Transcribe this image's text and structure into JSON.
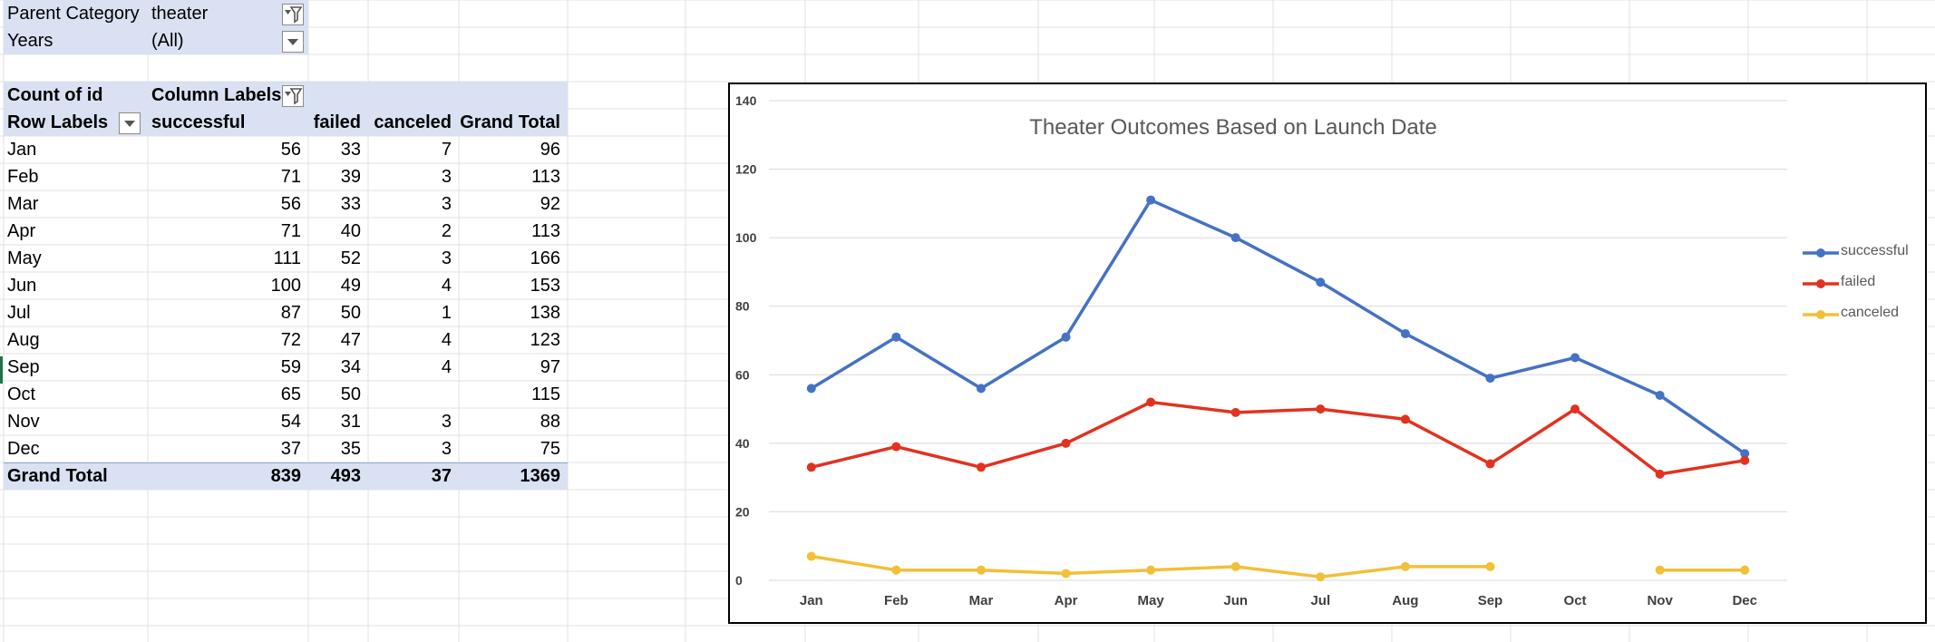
{
  "filters": [
    {
      "label": "Parent Category",
      "value": "theater",
      "filtered": true
    },
    {
      "label": "Years",
      "value": "(All)",
      "filtered": false
    }
  ],
  "pivot": {
    "header_top": {
      "count_label": "Count of id",
      "column_labels": "Column Labels"
    },
    "header": {
      "row_labels": "Row Labels",
      "successful": "successful",
      "failed": "failed",
      "canceled": "canceled",
      "grand_total": "Grand Total"
    },
    "rows": [
      {
        "label": "Jan",
        "successful": "56",
        "failed": "33",
        "canceled": "7",
        "total": "96"
      },
      {
        "label": "Feb",
        "successful": "71",
        "failed": "39",
        "canceled": "3",
        "total": "113"
      },
      {
        "label": "Mar",
        "successful": "56",
        "failed": "33",
        "canceled": "3",
        "total": "92"
      },
      {
        "label": "Apr",
        "successful": "71",
        "failed": "40",
        "canceled": "2",
        "total": "113"
      },
      {
        "label": "May",
        "successful": "111",
        "failed": "52",
        "canceled": "3",
        "total": "166"
      },
      {
        "label": "Jun",
        "successful": "100",
        "failed": "49",
        "canceled": "4",
        "total": "153"
      },
      {
        "label": "Jul",
        "successful": "87",
        "failed": "50",
        "canceled": "1",
        "total": "138"
      },
      {
        "label": "Aug",
        "successful": "72",
        "failed": "47",
        "canceled": "4",
        "total": "123"
      },
      {
        "label": "Sep",
        "successful": "59",
        "failed": "34",
        "canceled": "4",
        "total": "97"
      },
      {
        "label": "Oct",
        "successful": "65",
        "failed": "50",
        "canceled": "",
        "total": "115"
      },
      {
        "label": "Nov",
        "successful": "54",
        "failed": "31",
        "canceled": "3",
        "total": "88"
      },
      {
        "label": "Dec",
        "successful": "37",
        "failed": "35",
        "canceled": "3",
        "total": "75"
      }
    ],
    "grand_total": {
      "label": "Grand Total",
      "successful": "839",
      "failed": "493",
      "canceled": "37",
      "total": "1369"
    }
  },
  "icons": {
    "filter_active": "filter-dropdown-icon",
    "dropdown": "dropdown-arrow-icon"
  },
  "chart_data": {
    "type": "line",
    "title": "Theater Outcomes Based on Launch Date",
    "categories": [
      "Jan",
      "Feb",
      "Mar",
      "Apr",
      "May",
      "Jun",
      "Jul",
      "Aug",
      "Sep",
      "Oct",
      "Nov",
      "Dec"
    ],
    "series": [
      {
        "name": "successful",
        "color": "#4472c4",
        "values": [
          56,
          71,
          56,
          71,
          111,
          100,
          87,
          72,
          59,
          65,
          54,
          37
        ]
      },
      {
        "name": "failed",
        "color": "#e2321f",
        "values": [
          33,
          39,
          33,
          40,
          52,
          49,
          50,
          47,
          34,
          50,
          31,
          35
        ]
      },
      {
        "name": "canceled",
        "color": "#f2c037",
        "values": [
          7,
          3,
          3,
          2,
          3,
          4,
          1,
          4,
          4,
          null,
          3,
          3
        ]
      }
    ],
    "yticks": [
      0,
      20,
      40,
      60,
      80,
      100,
      120,
      140
    ],
    "ylim": [
      0,
      140
    ],
    "grid": true,
    "legend": "right"
  }
}
